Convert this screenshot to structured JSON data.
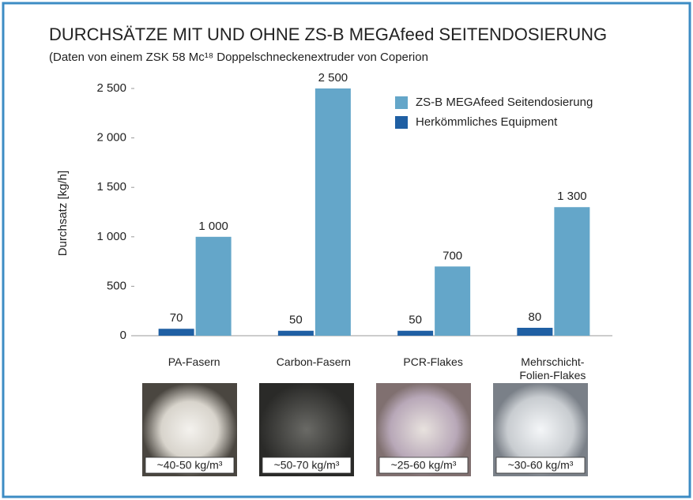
{
  "chart_data": {
    "type": "bar",
    "title": "DURCHSÄTZE MIT UND OHNE ZS-B MEGAfeed SEITENDOSIERUNG",
    "subtitle": "(Daten von einem ZSK 58 Mc¹⁸ Doppelschneckenextruder von Coperion",
    "y_label": "Durchsatz [kg/h]",
    "categories": [
      "PA-Fasern",
      "Carbon-Fasern",
      "PCR-Flakes",
      "Mehrschicht-Folien-Flakes"
    ],
    "series": [
      {
        "name": "ZS-B MEGAfeed Seitendosierung",
        "color": "#64a6c9",
        "values": [
          1000,
          2500,
          700,
          1300
        ],
        "value_labels": [
          "1 000",
          "2 500",
          "700",
          "1 300"
        ]
      },
      {
        "name": "Herkömmliches Equipment",
        "color": "#1f5fa3",
        "values": [
          70,
          50,
          50,
          80
        ]
      }
    ],
    "ylim": [
      0,
      2500
    ],
    "yticks": [
      0,
      500,
      {
        "value": 1000,
        "label": "1 000"
      },
      {
        "value": 1500,
        "label": "1 500"
      },
      {
        "value": 2000,
        "label": "2 000"
      },
      {
        "value": 2500,
        "label": "2 500"
      }
    ],
    "density_labels": [
      "~40-50 kg/m³",
      "~50-70 kg/m³",
      "~25-60 kg/m³",
      "~30-60 kg/m³"
    ]
  }
}
